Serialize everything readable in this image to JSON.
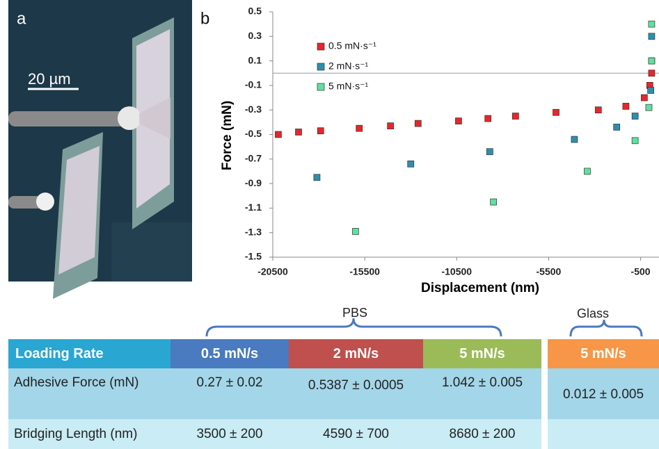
{
  "panel_labels": [
    "a",
    "b"
  ],
  "scale_bar": "20 µm",
  "chart_data": {
    "type": "scatter",
    "xlabel": "Displacement (nm)",
    "ylabel": "Force (mN)",
    "xlim": [
      -20500,
      500
    ],
    "xticks": [
      -20500,
      -15500,
      -10500,
      -5500,
      -500
    ],
    "ylim": [
      -1.5,
      0.5
    ],
    "yticks": [
      -1.5,
      -1.3,
      -1.1,
      -0.9,
      -0.7,
      -0.5,
      -0.3,
      -0.1,
      0.1,
      0.3,
      0.5
    ],
    "legend": "upper left",
    "series": [
      {
        "name": "0.5 mN·s⁻¹",
        "color": "#e8262a",
        "x": [
          -20200,
          -19100,
          -17900,
          -15800,
          -14100,
          -12600,
          -10400,
          -8800,
          -7300,
          -5100,
          -2800,
          -1300,
          -300,
          0,
          100
        ],
        "values": [
          -0.5,
          -0.48,
          -0.47,
          -0.45,
          -0.43,
          -0.41,
          -0.39,
          -0.37,
          -0.35,
          -0.32,
          -0.3,
          -0.27,
          -0.2,
          -0.1,
          0.0
        ]
      },
      {
        "name": "2 mN·s⁻¹",
        "color": "#2d8fb0",
        "x": [
          -18100,
          -13000,
          -8700,
          -4100,
          -1800,
          -800,
          50,
          100,
          100
        ],
        "values": [
          -0.85,
          -0.74,
          -0.64,
          -0.54,
          -0.44,
          -0.35,
          -0.14,
          0.1,
          0.3
        ]
      },
      {
        "name": "5 mN·s⁻¹",
        "color": "#5fe0a0",
        "x": [
          -16000,
          -8500,
          -3400,
          -800,
          -50,
          100,
          100
        ],
        "values": [
          -1.29,
          -1.05,
          -0.8,
          -0.55,
          -0.28,
          0.1,
          0.4
        ]
      }
    ]
  },
  "table": {
    "groups": [
      "PBS",
      "Glass"
    ],
    "header": [
      "Loading Rate",
      "0.5 mN/s",
      "2 mN/s",
      "5 mN/s",
      "5 mN/s"
    ],
    "rows": [
      [
        "Adhesive Force (mN)",
        "0.27 ± 0.02",
        "0.5387 ± 0.0005",
        "1.042 ± 0.005",
        "0.012 ± 0.005"
      ],
      [
        "Bridging Length (nm)",
        "3500 ± 200",
        "4590 ± 700",
        "8680 ± 200"
      ]
    ]
  }
}
